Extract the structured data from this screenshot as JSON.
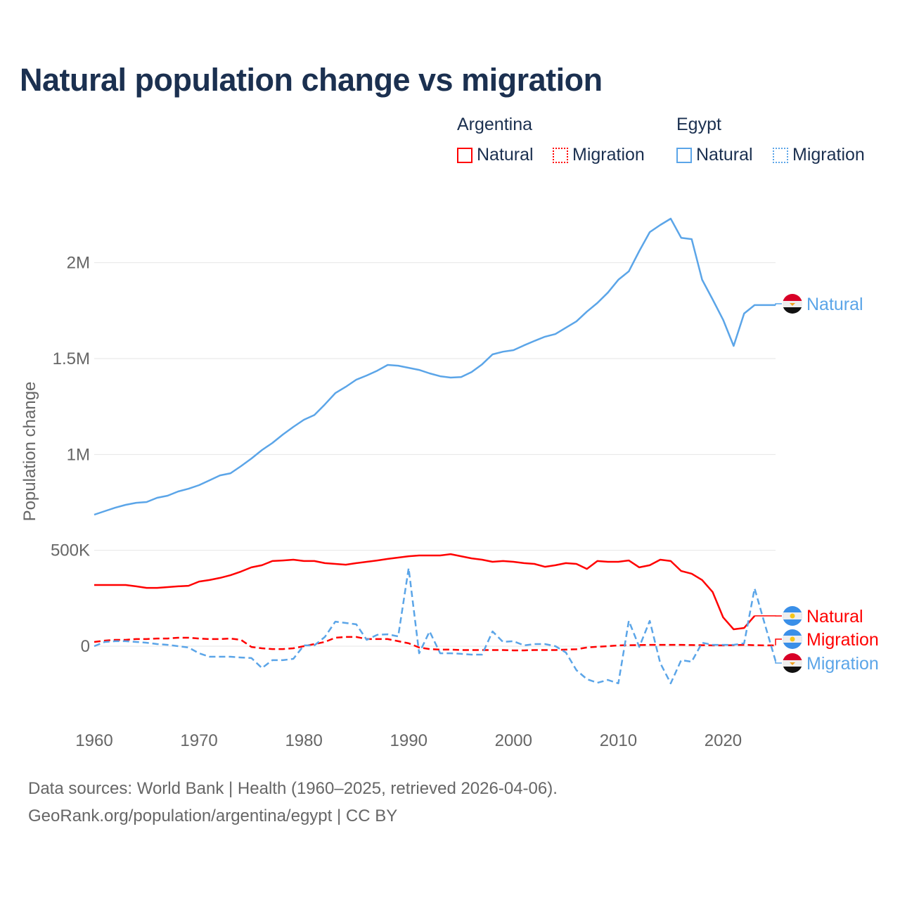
{
  "title": "Natural population change vs migration",
  "legend": {
    "groups": [
      {
        "name": "Argentina",
        "items": [
          "Natural",
          "Migration"
        ]
      },
      {
        "name": "Egypt",
        "items": [
          "Natural",
          "Migration"
        ]
      }
    ]
  },
  "colors": {
    "argentina": "#ff0000",
    "egypt": "#5ba5e8",
    "grid": "#e6e6e6",
    "axis_text": "#666666"
  },
  "footer": {
    "line1": "Data sources: World Bank | Health (1960–2025, retrieved 2026-04-06).",
    "line2": "GeoRank.org/population/argentina/egypt | CC BY"
  },
  "chart_data": {
    "type": "line",
    "title": "Natural population change vs migration",
    "xlabel": "",
    "ylabel": "Population change",
    "xlim": [
      1960,
      2025
    ],
    "ylim": [
      -300000,
      2300000
    ],
    "x_ticks": [
      1960,
      1970,
      1980,
      1990,
      2000,
      2010,
      2020
    ],
    "x_tick_labels": [
      "1960",
      "1970",
      "1980",
      "1990",
      "2000",
      "2010",
      "2020"
    ],
    "y_ticks": [
      0,
      500000,
      1000000,
      1500000,
      2000000
    ],
    "y_tick_labels": [
      "0",
      "500K",
      "1M",
      "1.5M",
      "2M"
    ],
    "grid": true,
    "series": [
      {
        "name": "Natural",
        "country": "Argentina",
        "style": "solid",
        "end_label": "Natural",
        "start_year": 1960,
        "values_k": [
          319,
          319,
          319,
          319,
          312,
          304,
          304,
          308,
          312,
          315,
          337,
          345,
          356,
          370,
          389,
          411,
          422,
          444,
          447,
          451,
          444,
          444,
          433,
          429,
          425,
          433,
          440,
          447,
          455,
          462,
          469,
          473,
          473,
          473,
          480,
          469,
          458,
          451,
          440,
          444,
          440,
          433,
          429,
          414,
          422,
          433,
          429,
          403,
          444,
          440,
          440,
          447,
          411,
          422,
          451,
          444,
          392,
          378,
          345,
          282,
          150,
          88,
          95,
          158
        ]
      },
      {
        "name": "Migration",
        "country": "Argentina",
        "style": "dashed",
        "end_label": "Migration",
        "start_year": 1960,
        "values_k": [
          22,
          29,
          33,
          33,
          37,
          37,
          40,
          40,
          44,
          44,
          40,
          37,
          37,
          40,
          33,
          -4,
          -11,
          -15,
          -15,
          -11,
          0,
          11,
          22,
          44,
          48,
          48,
          37,
          37,
          37,
          26,
          15,
          -7,
          -15,
          -18,
          -18,
          -20,
          -20,
          -20,
          -20,
          -20,
          -22,
          -22,
          -20,
          -20,
          -20,
          -18,
          -16,
          -7,
          -3,
          0,
          4,
          5,
          6,
          7,
          7,
          7,
          7,
          6,
          5,
          4,
          4,
          5,
          7,
          5,
          4,
          4
        ]
      },
      {
        "name": "Natural",
        "country": "Egypt",
        "style": "solid",
        "end_label": "Natural",
        "start_year": 1960,
        "values_k": [
          686,
          704,
          722,
          737,
          748,
          752,
          774,
          785,
          807,
          821,
          840,
          865,
          891,
          902,
          939,
          979,
          1023,
          1060,
          1104,
          1144,
          1181,
          1206,
          1261,
          1320,
          1353,
          1390,
          1412,
          1437,
          1467,
          1463,
          1452,
          1441,
          1423,
          1408,
          1401,
          1404,
          1430,
          1470,
          1522,
          1536,
          1544,
          1569,
          1592,
          1614,
          1628,
          1661,
          1694,
          1745,
          1790,
          1844,
          1911,
          1955,
          2061,
          2160,
          2197,
          2230,
          2130,
          2123,
          1911,
          1808,
          1702,
          1566,
          1735,
          1779,
          1779,
          1779
        ]
      },
      {
        "name": "Migration",
        "country": "Egypt",
        "style": "dashed",
        "end_label": "Migration",
        "start_year": 1960,
        "values_k": [
          0,
          22,
          26,
          26,
          22,
          18,
          11,
          7,
          0,
          -7,
          -37,
          -55,
          -55,
          -55,
          -59,
          -62,
          -114,
          -73,
          -73,
          -66,
          4,
          4,
          48,
          128,
          121,
          114,
          33,
          59,
          62,
          51,
          407,
          -37,
          77,
          -37,
          -37,
          -40,
          -44,
          -44,
          77,
          22,
          26,
          4,
          11,
          11,
          0,
          -33,
          -125,
          -172,
          -191,
          -176,
          -194,
          132,
          -4,
          132,
          -88,
          -194,
          -73,
          -81,
          18,
          7,
          7,
          7,
          15,
          301,
          110,
          -77
        ]
      }
    ]
  }
}
